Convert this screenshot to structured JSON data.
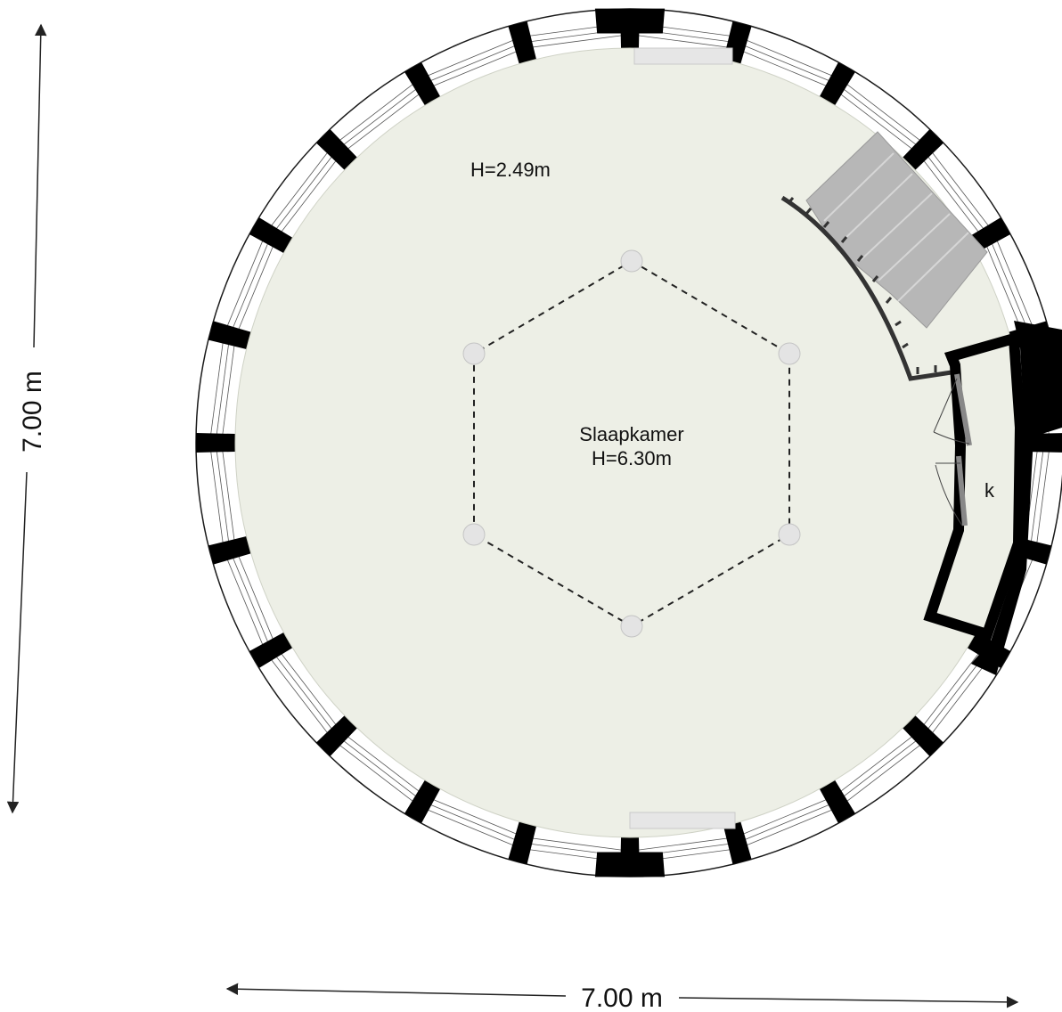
{
  "floorplan": {
    "room_name": "Slaapkamer",
    "room_height": "H=6.30m",
    "ceiling_height": "H=2.49m",
    "closet_label": "k",
    "width_dimension": "7.00 m",
    "depth_dimension": "7.00 m",
    "colors": {
      "floor": "#edefe6",
      "wall": "#000000",
      "window_glass": "#ffffff",
      "stairs": "#b3b3b3",
      "column": "#e4e4e4",
      "dimension_line": "#222222"
    }
  }
}
